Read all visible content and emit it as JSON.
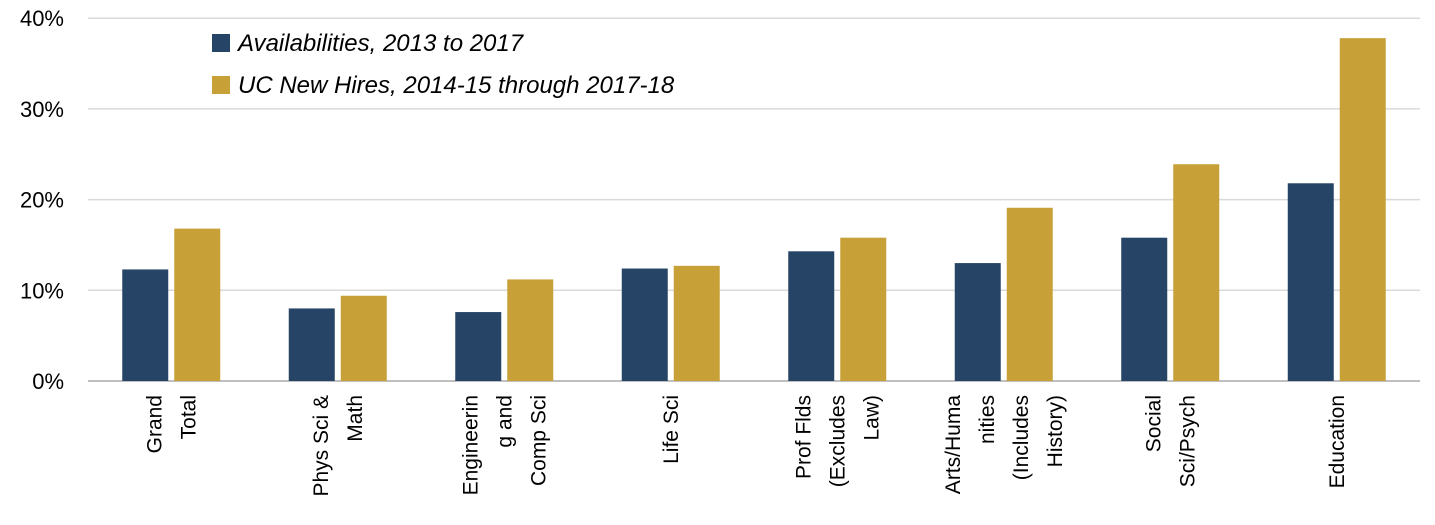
{
  "chart_data": {
    "type": "bar",
    "title": "",
    "xlabel": "",
    "ylabel": "",
    "ylim": [
      0,
      40
    ],
    "yticks": [
      "0%",
      "10%",
      "20%",
      "30%",
      "40%"
    ],
    "grid": true,
    "legend_position": "top-left",
    "categories": [
      [
        "Grand",
        "Total"
      ],
      [
        "Phys Sci &",
        "Math"
      ],
      [
        "Engineerin",
        "g and",
        "Comp Sci"
      ],
      [
        "Life Sci"
      ],
      [
        "Prof Flds",
        "(Excludes",
        "Law)"
      ],
      [
        "Arts/Huma",
        "nities",
        "(Includes",
        "History)"
      ],
      [
        "Social",
        "Sci/Psych"
      ],
      [
        "Education"
      ]
    ],
    "series": [
      {
        "name": "Availabilities, 2013 to 2017",
        "color": "#264465",
        "values": [
          12.3,
          8.0,
          7.6,
          12.4,
          14.3,
          13.0,
          15.8,
          21.8
        ]
      },
      {
        "name": "UC New Hires, 2014-15 through 2017-18",
        "color": "#c8a038",
        "values": [
          16.8,
          9.4,
          11.2,
          12.7,
          15.8,
          19.1,
          23.9,
          37.8
        ]
      }
    ]
  }
}
